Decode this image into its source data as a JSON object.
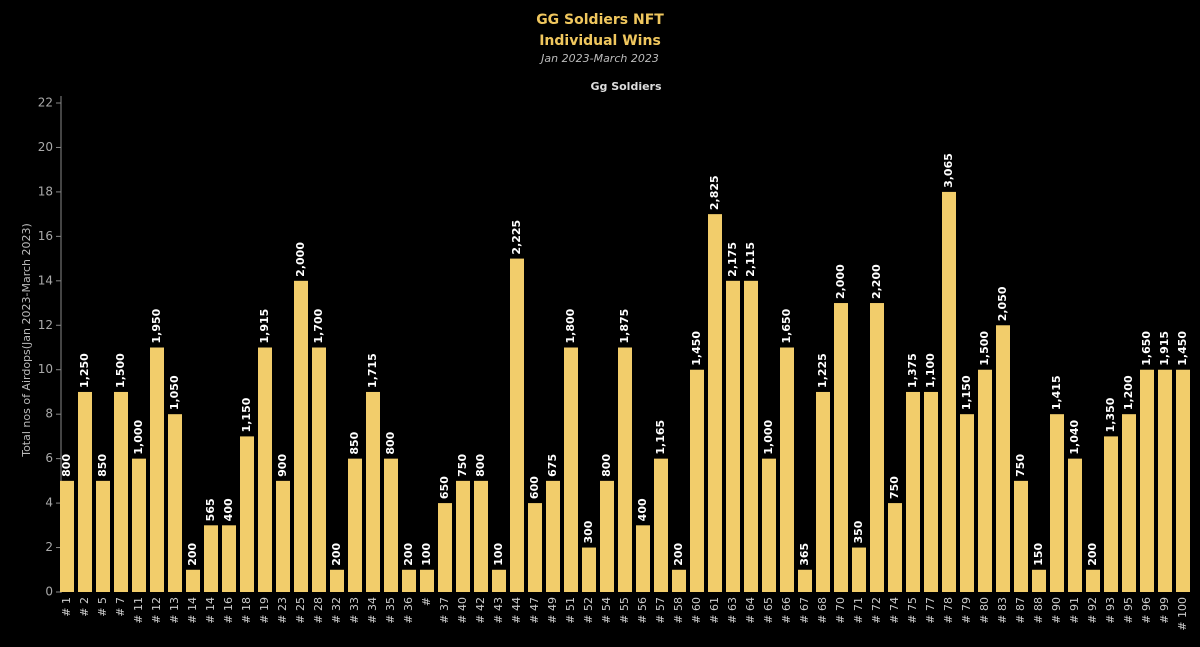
{
  "chart_data": {
    "type": "bar",
    "title": "GG Soldiers NFT",
    "subtitle": "Individual Wins",
    "date_range": "Jan 2023-March 2023",
    "header": "Gg Soldiers",
    "y_label": "Total nos of Airdops(Jan 2023-March 2023)",
    "color": "#f2cd6b",
    "categories": [
      "# 1",
      "# 2",
      "# 5",
      "# 7",
      "# 11",
      "# 12",
      "# 13",
      "# 14",
      "# 14",
      "# 16",
      "# 18",
      "# 19",
      "# 23",
      "# 25",
      "# 28",
      "# 32",
      "# 33",
      "# 34",
      "# 35",
      "# 36",
      "#",
      "# 37",
      "# 40",
      "# 42",
      "# 43",
      "# 44",
      "# 47",
      "# 49",
      "# 51",
      "# 52",
      "# 54",
      "# 55",
      "# 56",
      "# 57",
      "# 58",
      "# 60",
      "# 61",
      "# 63",
      "# 64",
      "# 65",
      "# 66",
      "# 67",
      "# 68",
      "# 70",
      "# 71",
      "# 72",
      "# 74",
      "# 75",
      "# 77",
      "# 78",
      "# 79",
      "# 80",
      "# 83",
      "# 87",
      "# 88",
      "# 90",
      "# 91",
      "# 92",
      "# 93",
      "# 95",
      "# 96",
      "# 99",
      "# 100"
    ],
    "values": [
      5,
      9,
      5,
      9,
      6,
      11,
      8,
      1,
      3,
      3,
      7,
      11,
      5,
      14,
      11,
      1,
      6,
      9,
      6,
      1,
      1,
      4,
      5,
      5,
      1,
      15,
      4,
      5,
      11,
      2,
      5,
      11,
      3,
      6,
      1,
      10,
      17,
      14,
      14,
      6,
      11,
      1,
      9,
      13,
      2,
      13,
      4,
      9,
      9,
      18,
      8,
      10,
      12,
      5,
      1,
      8,
      6,
      1,
      7,
      8,
      10,
      10,
      10
    ],
    "data_labels": [
      "800",
      "1,250",
      "850",
      "1,500",
      "1,000",
      "1,950",
      "1,050",
      "200",
      "565",
      "400",
      "1,150",
      "1,915",
      "900",
      "2,000",
      "1,700",
      "200",
      "850",
      "1,715",
      "800",
      "200",
      "100",
      "650",
      "750",
      "800",
      "100",
      "2,225",
      "600",
      "675",
      "1,800",
      "300",
      "800",
      "1,875",
      "400",
      "1,165",
      "200",
      "1,450",
      "2,825",
      "2,175",
      "2,115",
      "1,000",
      "1,650",
      "365",
      "1,225",
      "2,000",
      "350",
      "2,200",
      "750",
      "1,375",
      "1,100",
      "3,065",
      "1,150",
      "1,500",
      "2,050",
      "750",
      "150",
      "1,415",
      "1,040",
      "200",
      "1,350",
      "1,200",
      "1,650",
      "1,915",
      "1,450"
    ],
    "ylim": [
      0,
      22
    ],
    "yticks": [
      0,
      2,
      4,
      6,
      8,
      10,
      12,
      14,
      16,
      18,
      20,
      22
    ]
  }
}
